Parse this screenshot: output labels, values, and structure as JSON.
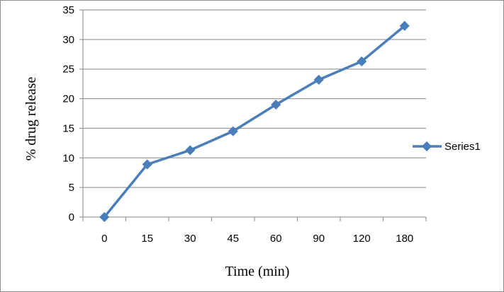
{
  "chart_data": {
    "type": "line",
    "categories": [
      "0",
      "15",
      "30",
      "45",
      "60",
      "90",
      "120",
      "180"
    ],
    "series": [
      {
        "name": "Series1",
        "values": [
          0,
          8.9,
          11.3,
          14.5,
          19.0,
          23.2,
          26.3,
          32.3
        ],
        "color": "#4a7ebb"
      }
    ],
    "xlabel": "Time (min)",
    "ylabel": "% drug  release",
    "ylim": [
      0,
      35
    ],
    "yticks": [
      0,
      5,
      10,
      15,
      20,
      25,
      30,
      35
    ],
    "grid": true,
    "legend_position": "right"
  }
}
